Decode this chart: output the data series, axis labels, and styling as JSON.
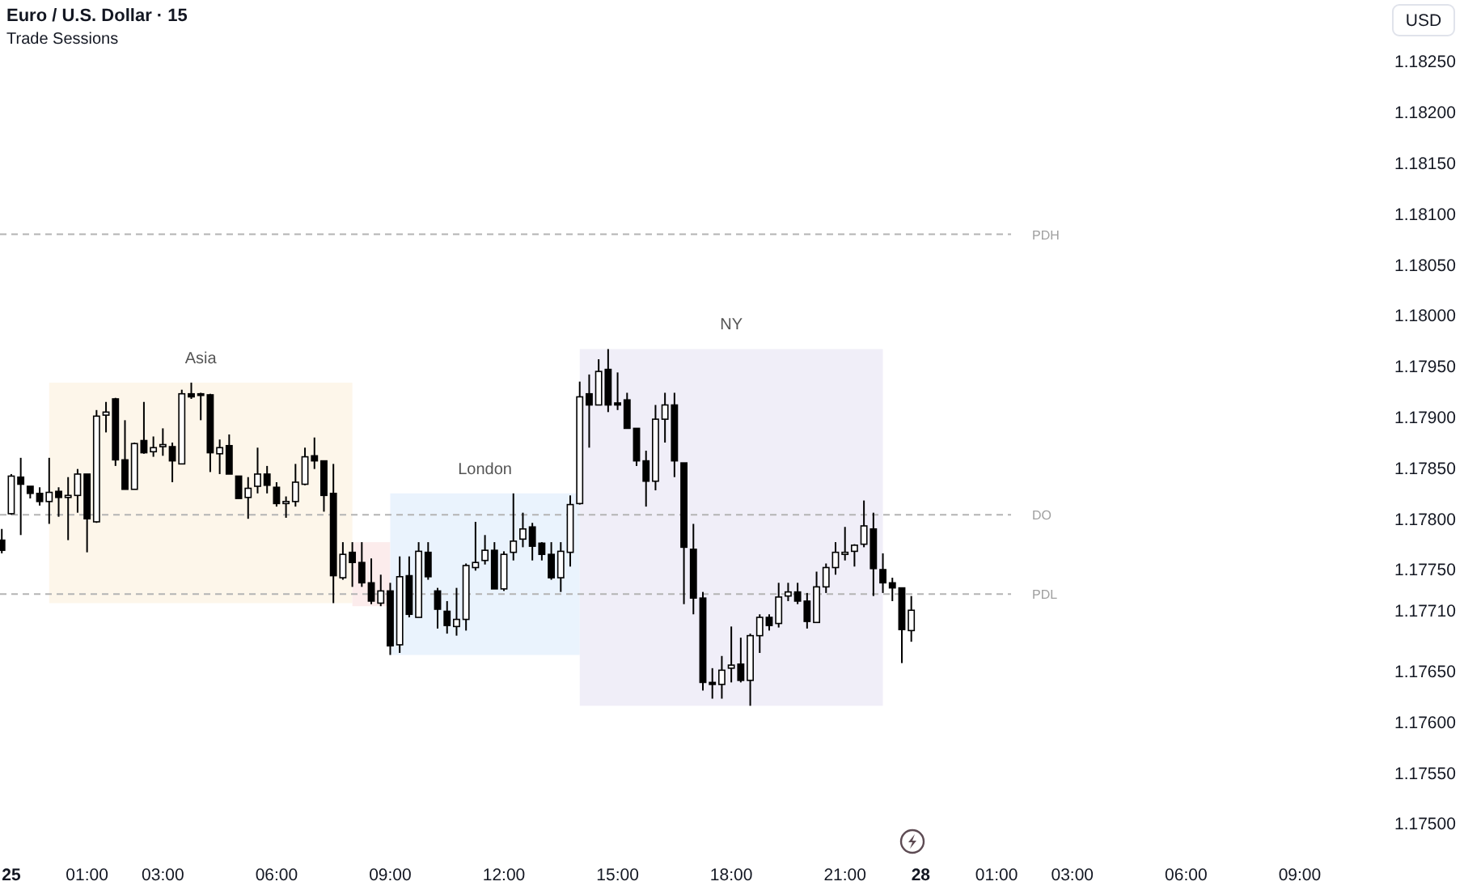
{
  "chart_data": {
    "type": "candlestick",
    "title": "Euro / U.S. Dollar · 15",
    "subtitle": "Trade Sessions",
    "ylabel": "USD",
    "ylim": [
      1.175,
      1.1825
    ],
    "annotations": [
      "Asia",
      "London",
      "NY"
    ],
    "yticks": [
      {
        "value": 1.175,
        "label": "1.17500"
      },
      {
        "value": 1.1755,
        "label": "1.17550"
      },
      {
        "value": 1.176,
        "label": "1.17600"
      },
      {
        "value": 1.1765,
        "label": "1.17650"
      },
      {
        "value": 1.1771,
        "label": "1.17710"
      },
      {
        "value": 1.1775,
        "label": "1.17750"
      },
      {
        "value": 1.178,
        "label": "1.17800"
      },
      {
        "value": 1.1785,
        "label": "1.17850"
      },
      {
        "value": 1.179,
        "label": "1.17900"
      },
      {
        "value": 1.1795,
        "label": "1.17950"
      },
      {
        "value": 1.18,
        "label": "1.18000"
      },
      {
        "value": 1.1805,
        "label": "1.18050"
      },
      {
        "value": 1.181,
        "label": "1.18100"
      },
      {
        "value": 1.1815,
        "label": "1.18150"
      },
      {
        "value": 1.182,
        "label": "1.18200"
      },
      {
        "value": 1.1825,
        "label": "1.18250"
      }
    ],
    "grid": false,
    "categories": [
      null,
      "25",
      null,
      null,
      null,
      null,
      null,
      null,
      null,
      "01:00",
      null,
      null,
      null,
      null,
      null,
      null,
      null,
      "03:00",
      null,
      null,
      null,
      null,
      null,
      null,
      null,
      null,
      null,
      null,
      null,
      "06:00",
      null,
      null,
      null,
      null,
      null,
      null,
      null,
      null,
      null,
      null,
      null,
      "09:00",
      null,
      null,
      null,
      null,
      null,
      null,
      null,
      null,
      null,
      null,
      null,
      "12:00",
      null,
      null,
      null,
      null,
      null,
      null,
      null,
      null,
      null,
      null,
      null,
      "15:00",
      null,
      null,
      null,
      null,
      null,
      null,
      null,
      null,
      null,
      null,
      null,
      "18:00",
      null,
      null,
      null,
      null,
      null,
      null,
      null,
      null,
      null,
      null,
      null,
      "21:00",
      null,
      null,
      null,
      null,
      null,
      null,
      null,
      "28",
      null,
      null,
      null,
      null,
      null,
      null,
      null,
      "01:00",
      null,
      null,
      null,
      null,
      null,
      null,
      null,
      "03:00",
      null,
      null,
      null,
      null,
      null,
      null,
      null,
      null,
      null,
      null,
      null,
      "06:00",
      null,
      null,
      null,
      null,
      null,
      null,
      null,
      null,
      null,
      null,
      null,
      "09:00",
      null,
      null,
      null,
      null,
      null,
      null,
      null,
      null
    ],
    "ohlc": [
      [
        1.17779,
        1.1779,
        1.17766,
        1.17769
      ],
      [
        1.17805,
        1.17844,
        1.17804,
        1.17842
      ],
      [
        1.17841,
        1.1786,
        1.17784,
        1.17834
      ],
      [
        1.17832,
        1.17832,
        1.1782,
        1.17825
      ],
      [
        1.17825,
        1.17831,
        1.17813,
        1.17817
      ],
      [
        1.17817,
        1.1786,
        1.17795,
        1.17826
      ],
      [
        1.17827,
        1.17831,
        1.17802,
        1.17821
      ],
      [
        1.17821,
        1.17841,
        1.17779,
        1.17823
      ],
      [
        1.17823,
        1.17849,
        1.17806,
        1.17844
      ],
      [
        1.17844,
        1.17844,
        1.17767,
        1.178
      ],
      [
        1.17797,
        1.17907,
        1.17796,
        1.17901
      ],
      [
        1.17902,
        1.17915,
        1.17885,
        1.17905
      ],
      [
        1.17918,
        1.17919,
        1.17852,
        1.17858
      ],
      [
        1.17858,
        1.17897,
        1.17829,
        1.17829
      ],
      [
        1.17829,
        1.17875,
        1.17829,
        1.17874
      ],
      [
        1.17877,
        1.17915,
        1.17864,
        1.17865
      ],
      [
        1.17866,
        1.17881,
        1.17861,
        1.1787
      ],
      [
        1.17871,
        1.17889,
        1.17862,
        1.17873
      ],
      [
        1.17871,
        1.17875,
        1.17836,
        1.17857
      ],
      [
        1.17854,
        1.17927,
        1.17854,
        1.17923
      ],
      [
        1.17923,
        1.17934,
        1.17918,
        1.1792
      ],
      [
        1.17923,
        1.17924,
        1.17897,
        1.17922
      ],
      [
        1.17922,
        1.17923,
        1.17846,
        1.17865
      ],
      [
        1.17864,
        1.17878,
        1.17844,
        1.1787
      ],
      [
        1.17872,
        1.17883,
        1.17844,
        1.17844
      ],
      [
        1.17842,
        1.17842,
        1.1782,
        1.1782
      ],
      [
        1.17821,
        1.17841,
        1.178,
        1.1783
      ],
      [
        1.17832,
        1.1787,
        1.17825,
        1.17844
      ],
      [
        1.17844,
        1.17852,
        1.17825,
        1.17833
      ],
      [
        1.17831,
        1.17836,
        1.17812,
        1.17815
      ],
      [
        1.17815,
        1.17822,
        1.17801,
        1.17817
      ],
      [
        1.17817,
        1.17854,
        1.17812,
        1.17836
      ],
      [
        1.17834,
        1.1787,
        1.17833,
        1.17861
      ],
      [
        1.17862,
        1.1788,
        1.17849,
        1.17857
      ],
      [
        1.17857,
        1.17857,
        1.17807,
        1.17823
      ],
      [
        1.17825,
        1.17854,
        1.17717,
        1.17744
      ],
      [
        1.17742,
        1.17777,
        1.1774,
        1.17765
      ],
      [
        1.17767,
        1.17777,
        1.17733,
        1.17757
      ],
      [
        1.17757,
        1.17777,
        1.17733,
        1.17737
      ],
      [
        1.17737,
        1.17761,
        1.17716,
        1.17719
      ],
      [
        1.17717,
        1.17745,
        1.17714,
        1.17729
      ],
      [
        1.17729,
        1.17737,
        1.17666,
        1.17675
      ],
      [
        1.17676,
        1.17763,
        1.17668,
        1.17743
      ],
      [
        1.17744,
        1.17763,
        1.17703,
        1.17706
      ],
      [
        1.17703,
        1.17777,
        1.17703,
        1.17768
      ],
      [
        1.17767,
        1.17777,
        1.1774,
        1.17743
      ],
      [
        1.17729,
        1.17732,
        1.17692,
        1.17711
      ],
      [
        1.17709,
        1.17719,
        1.17687,
        1.17695
      ],
      [
        1.17694,
        1.17732,
        1.17685,
        1.17701
      ],
      [
        1.17701,
        1.17756,
        1.1769,
        1.17754
      ],
      [
        1.17752,
        1.17797,
        1.17749,
        1.17757
      ],
      [
        1.17759,
        1.17784,
        1.17755,
        1.17769
      ],
      [
        1.17769,
        1.17777,
        1.17731,
        1.17731
      ],
      [
        1.17731,
        1.17768,
        1.17729,
        1.17765
      ],
      [
        1.17767,
        1.17825,
        1.17759,
        1.17778
      ],
      [
        1.1778,
        1.17806,
        1.17772,
        1.1779
      ],
      [
        1.17792,
        1.17796,
        1.17759,
        1.17773
      ],
      [
        1.17776,
        1.17777,
        1.17759,
        1.17765
      ],
      [
        1.17765,
        1.17777,
        1.1774,
        1.17742
      ],
      [
        1.17742,
        1.17777,
        1.17728,
        1.17768
      ],
      [
        1.17767,
        1.17823,
        1.17753,
        1.17814
      ],
      [
        1.17815,
        1.17935,
        1.17814,
        1.1792
      ],
      [
        1.17923,
        1.17942,
        1.1787,
        1.17912
      ],
      [
        1.17912,
        1.17957,
        1.17912,
        1.17945
      ],
      [
        1.17947,
        1.17967,
        1.17905,
        1.17912
      ],
      [
        1.17914,
        1.17944,
        1.17907,
        1.17912
      ],
      [
        1.17917,
        1.17924,
        1.17889,
        1.17889
      ],
      [
        1.17889,
        1.17889,
        1.17852,
        1.17857
      ],
      [
        1.17857,
        1.17867,
        1.17812,
        1.17837
      ],
      [
        1.17837,
        1.17912,
        1.17828,
        1.17898
      ],
      [
        1.17898,
        1.17924,
        1.17875,
        1.17912
      ],
      [
        1.17912,
        1.17924,
        1.17841,
        1.17857
      ],
      [
        1.17855,
        1.17855,
        1.17716,
        1.17772
      ],
      [
        1.1777,
        1.17795,
        1.17706,
        1.17722
      ],
      [
        1.17722,
        1.17728,
        1.17631,
        1.17639
      ],
      [
        1.17639,
        1.17653,
        1.17623,
        1.17637
      ],
      [
        1.17637,
        1.17665,
        1.17623,
        1.17651
      ],
      [
        1.17653,
        1.17694,
        1.17639,
        1.17656
      ],
      [
        1.17657,
        1.17683,
        1.17639,
        1.17641
      ],
      [
        1.17641,
        1.17687,
        1.17616,
        1.17685
      ],
      [
        1.17685,
        1.17706,
        1.17668,
        1.17703
      ],
      [
        1.17703,
        1.17706,
        1.1769,
        1.17695
      ],
      [
        1.17697,
        1.17737,
        1.17693,
        1.17723
      ],
      [
        1.17724,
        1.17737,
        1.17719,
        1.17728
      ],
      [
        1.17728,
        1.17737,
        1.17716,
        1.17719
      ],
      [
        1.17719,
        1.17727,
        1.17692,
        1.17699
      ],
      [
        1.17698,
        1.17748,
        1.17698,
        1.17733
      ],
      [
        1.17733,
        1.17756,
        1.17727,
        1.17752
      ],
      [
        1.17752,
        1.17777,
        1.17745,
        1.17767
      ],
      [
        1.17765,
        1.17792,
        1.17759,
        1.17767
      ],
      [
        1.17768,
        1.17775,
        1.17753,
        1.17774
      ],
      [
        1.17775,
        1.17818,
        1.17772,
        1.17793
      ],
      [
        1.1779,
        1.17806,
        1.17724,
        1.17751
      ],
      [
        1.1775,
        1.17766,
        1.17727,
        1.17737
      ],
      [
        1.17737,
        1.17742,
        1.17719,
        1.17732
      ],
      [
        1.17732,
        1.17732,
        1.17658,
        1.17691
      ],
      [
        1.1769,
        1.17724,
        1.17679,
        1.1771
      ],
      null,
      null,
      null,
      null,
      null,
      null,
      null,
      null,
      null,
      null,
      null,
      null,
      null,
      null,
      null,
      null,
      null,
      null,
      null,
      null,
      null,
      null,
      null,
      null,
      null,
      null,
      null,
      null,
      null,
      null,
      null,
      null,
      null,
      null,
      null,
      null,
      null,
      null,
      null,
      null,
      null,
      null,
      null,
      null,
      null,
      null,
      null,
      null,
      null
    ],
    "ref_lines": [
      {
        "axis": "y",
        "value": 1.1808,
        "label": "PDH",
        "line_style": "dashed",
        "color": "#b4b4b4"
      },
      {
        "axis": "y",
        "value": 1.17804,
        "label": "DO",
        "line_style": "dashed",
        "color": "#b4b4b4"
      },
      {
        "axis": "y",
        "value": 1.17726,
        "label": "PDL",
        "line_style": "dashed",
        "color": "#b4b4b4"
      }
    ]
  }
}
